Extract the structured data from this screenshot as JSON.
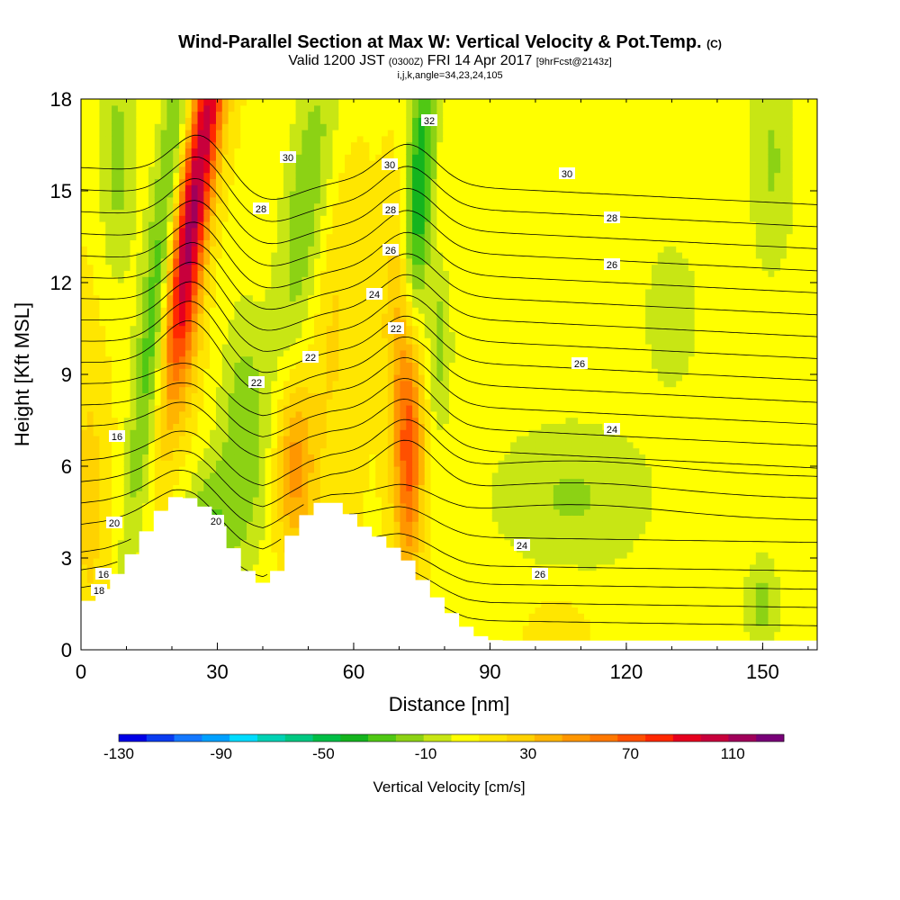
{
  "title": {
    "main": "Wind-Parallel Section at Max W: Vertical Velocity & Pot.Temp.",
    "main_unit": "(C)",
    "valid_prefix": "Valid 1200 JST",
    "valid_utc": "(0300Z)",
    "valid_date": "FRI 14 Apr 2017",
    "forecast": "[9hrFcst@2143z]",
    "indices": "i,j,k,angle=34,23,24,105"
  },
  "chart_data": {
    "type": "heatmap",
    "xlabel": "Distance [nm]",
    "ylabel": "Height [Kft MSL]",
    "xlim": [
      0,
      162
    ],
    "ylim": [
      0,
      18
    ],
    "xticks": [
      0,
      30,
      60,
      90,
      120,
      150
    ],
    "yticks": [
      0,
      3,
      6,
      9,
      12,
      15,
      18
    ],
    "colorbar": {
      "label": "Vertical Velocity [cm/s]",
      "tick_labels": [
        "-130",
        "-90",
        "-50",
        "-10",
        "30",
        "70",
        "110"
      ],
      "tick_values": [
        -130,
        -90,
        -50,
        -10,
        30,
        70,
        110
      ],
      "range": [
        -130,
        130
      ],
      "colors": [
        "#0000e6",
        "#0a3cf0",
        "#1478ff",
        "#00a0ff",
        "#00dcff",
        "#00d2b4",
        "#00c882",
        "#00be46",
        "#14b41e",
        "#50c814",
        "#8cd214",
        "#c8e614",
        "#ffff00",
        "#ffe600",
        "#ffd200",
        "#ffb400",
        "#ff9600",
        "#ff7800",
        "#ff5000",
        "#ff2800",
        "#e6001e",
        "#c8003c",
        "#a0005a",
        "#780078"
      ]
    },
    "contour_variable": "Potential Temperature [C]",
    "contour_labels": [
      "16",
      "16",
      "18",
      "20",
      "20",
      "22",
      "22",
      "22",
      "24",
      "24",
      "24",
      "26",
      "26",
      "26",
      "26",
      "28",
      "28",
      "28",
      "30",
      "30",
      "30",
      "32"
    ],
    "terrain_nm_kft": [
      [
        0,
        1.6
      ],
      [
        5,
        2.2
      ],
      [
        10,
        3.2
      ],
      [
        15,
        4.4
      ],
      [
        20,
        5.1
      ],
      [
        25,
        4.8
      ],
      [
        30,
        3.8
      ],
      [
        35,
        2.6
      ],
      [
        40,
        2.0
      ],
      [
        45,
        3.8
      ],
      [
        50,
        4.8
      ],
      [
        55,
        4.8
      ],
      [
        60,
        4.1
      ],
      [
        65,
        3.6
      ],
      [
        70,
        3.0
      ],
      [
        75,
        2.0
      ],
      [
        80,
        1.2
      ],
      [
        85,
        0.5
      ],
      [
        90,
        0.3
      ],
      [
        160,
        0.3
      ]
    ],
    "vertical_velocity_features": [
      {
        "x_nm": 25,
        "z_kft": 15,
        "w_cms": 110
      },
      {
        "x_nm": 48,
        "z_kft": 6,
        "w_cms": 50
      },
      {
        "x_nm": 72,
        "z_kft": 6,
        "w_cms": 70
      },
      {
        "x_nm": 18,
        "z_kft": 16,
        "w_cms": -40
      },
      {
        "x_nm": 77,
        "z_kft": 15,
        "w_cms": -50
      },
      {
        "x_nm": 105,
        "z_kft": 5,
        "w_cms": -15
      }
    ]
  }
}
